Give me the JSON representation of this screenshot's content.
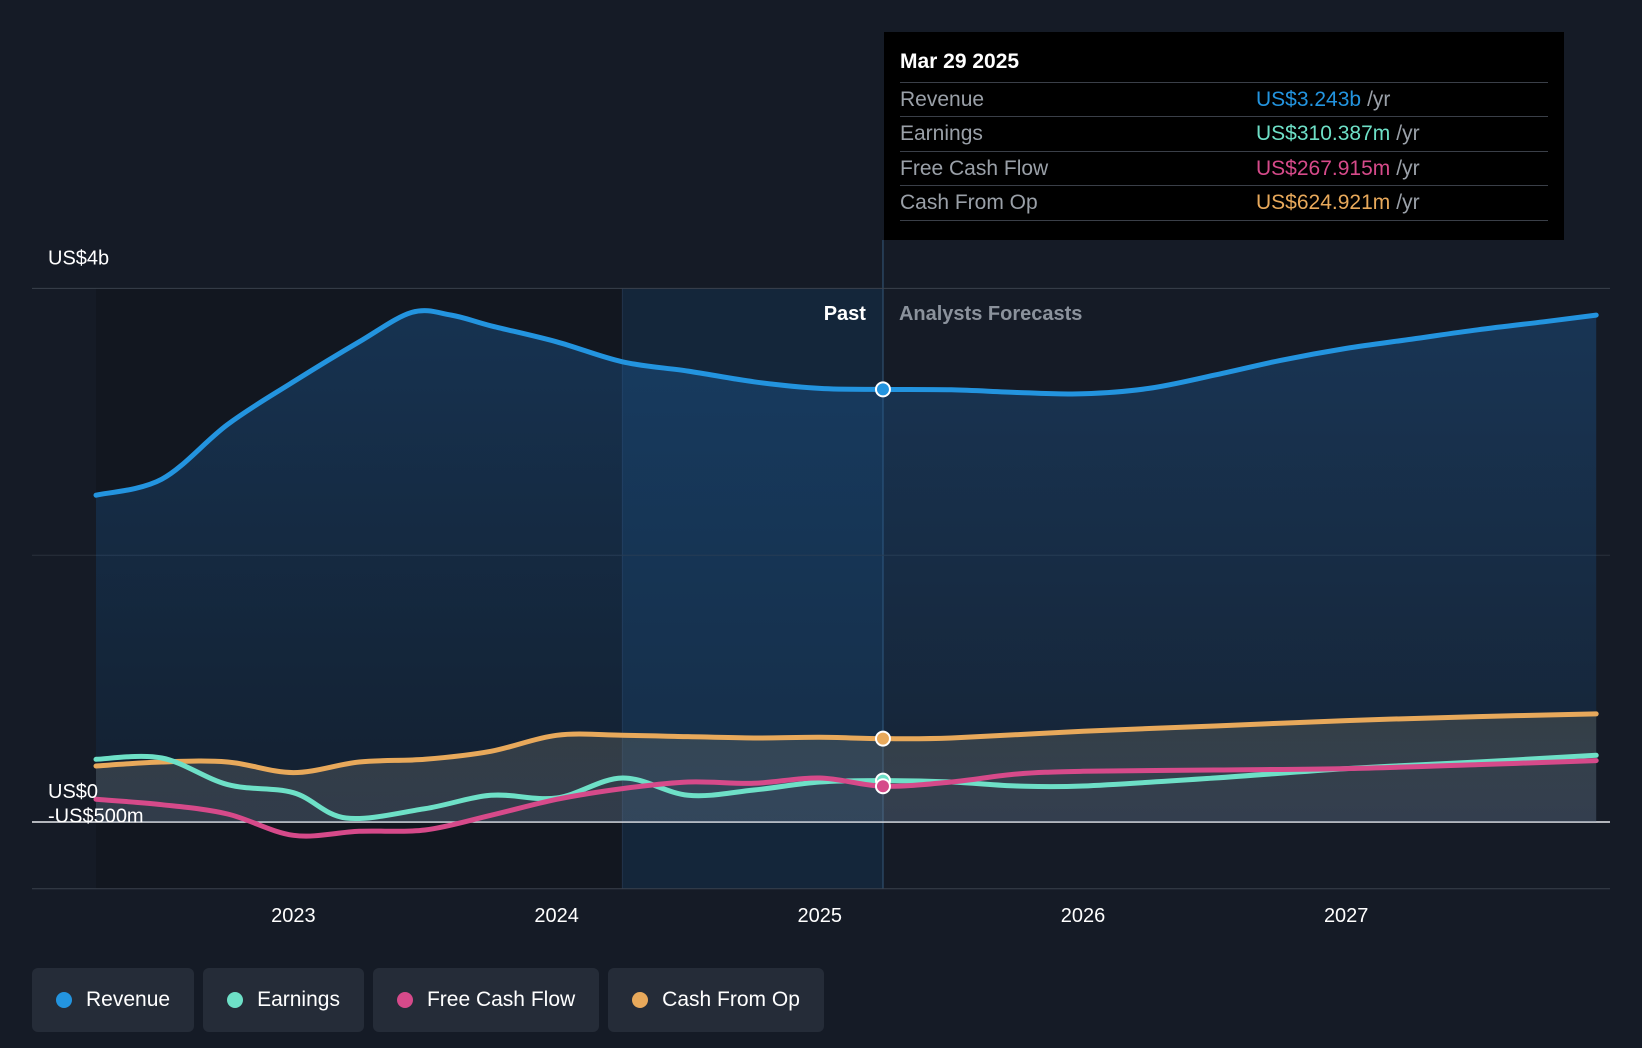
{
  "chart_data": {
    "type": "area",
    "y_ticks": [
      "US$4b",
      "US$0",
      "-US$500m"
    ],
    "x_ticks": [
      "2023",
      "2024",
      "2025",
      "2026",
      "2027"
    ],
    "ylim": [
      -0.5,
      4.0
    ],
    "xlim": [
      2022.25,
      2027.95
    ],
    "past_start": 2024.25,
    "divider": 2025.24,
    "past_label": "Past",
    "forecast_label": "Analysts Forecasts",
    "series": [
      {
        "key": "revenue",
        "name": "Revenue",
        "color": "#2394df",
        "points": [
          [
            2022.25,
            2.45
          ],
          [
            2022.5,
            2.57
          ],
          [
            2022.75,
            2.98
          ],
          [
            2023.0,
            3.3
          ],
          [
            2023.25,
            3.6
          ],
          [
            2023.45,
            3.82
          ],
          [
            2023.6,
            3.8
          ],
          [
            2023.75,
            3.72
          ],
          [
            2024.0,
            3.6
          ],
          [
            2024.25,
            3.45
          ],
          [
            2024.5,
            3.38
          ],
          [
            2024.75,
            3.3
          ],
          [
            2025.0,
            3.25
          ],
          [
            2025.24,
            3.243
          ],
          [
            2025.5,
            3.24
          ],
          [
            2025.75,
            3.22
          ],
          [
            2026.0,
            3.21
          ],
          [
            2026.25,
            3.25
          ],
          [
            2026.5,
            3.35
          ],
          [
            2026.75,
            3.46
          ],
          [
            2027.0,
            3.55
          ],
          [
            2027.25,
            3.62
          ],
          [
            2027.5,
            3.69
          ],
          [
            2027.75,
            3.75
          ],
          [
            2027.95,
            3.8
          ]
        ]
      },
      {
        "key": "earnings",
        "name": "Earnings",
        "color": "#6ee0c7",
        "points": [
          [
            2022.25,
            0.47
          ],
          [
            2022.5,
            0.48
          ],
          [
            2022.75,
            0.28
          ],
          [
            2023.0,
            0.22
          ],
          [
            2023.2,
            0.03
          ],
          [
            2023.5,
            0.1
          ],
          [
            2023.75,
            0.2
          ],
          [
            2024.0,
            0.18
          ],
          [
            2024.25,
            0.33
          ],
          [
            2024.5,
            0.2
          ],
          [
            2024.75,
            0.24
          ],
          [
            2025.0,
            0.3
          ],
          [
            2025.24,
            0.31
          ],
          [
            2025.5,
            0.3
          ],
          [
            2025.75,
            0.27
          ],
          [
            2026.0,
            0.27
          ],
          [
            2026.5,
            0.33
          ],
          [
            2027.0,
            0.4
          ],
          [
            2027.5,
            0.45
          ],
          [
            2027.95,
            0.5
          ]
        ]
      },
      {
        "key": "fcf",
        "name": "Free Cash Flow",
        "color": "#d64a8a",
        "points": [
          [
            2022.25,
            0.17
          ],
          [
            2022.5,
            0.13
          ],
          [
            2022.75,
            0.06
          ],
          [
            2023.0,
            -0.1
          ],
          [
            2023.25,
            -0.07
          ],
          [
            2023.5,
            -0.06
          ],
          [
            2023.75,
            0.05
          ],
          [
            2024.0,
            0.17
          ],
          [
            2024.25,
            0.25
          ],
          [
            2024.5,
            0.3
          ],
          [
            2024.75,
            0.29
          ],
          [
            2025.0,
            0.33
          ],
          [
            2025.24,
            0.268
          ],
          [
            2025.5,
            0.3
          ],
          [
            2025.75,
            0.36
          ],
          [
            2026.0,
            0.38
          ],
          [
            2026.5,
            0.39
          ],
          [
            2027.0,
            0.4
          ],
          [
            2027.5,
            0.43
          ],
          [
            2027.95,
            0.46
          ]
        ]
      },
      {
        "key": "cfo",
        "name": "Cash From Op",
        "color": "#e8a95b",
        "points": [
          [
            2022.25,
            0.42
          ],
          [
            2022.5,
            0.45
          ],
          [
            2022.75,
            0.45
          ],
          [
            2023.0,
            0.37
          ],
          [
            2023.25,
            0.45
          ],
          [
            2023.5,
            0.47
          ],
          [
            2023.75,
            0.53
          ],
          [
            2024.0,
            0.65
          ],
          [
            2024.25,
            0.65
          ],
          [
            2024.5,
            0.64
          ],
          [
            2024.75,
            0.63
          ],
          [
            2025.0,
            0.635
          ],
          [
            2025.24,
            0.625
          ],
          [
            2025.5,
            0.63
          ],
          [
            2026.0,
            0.68
          ],
          [
            2026.5,
            0.72
          ],
          [
            2027.0,
            0.76
          ],
          [
            2027.5,
            0.79
          ],
          [
            2027.95,
            0.81
          ]
        ]
      }
    ]
  },
  "tooltip": {
    "date": "Mar 29 2025",
    "rows": [
      {
        "label": "Revenue",
        "value": "US$3.243b",
        "unit": "/yr",
        "color": "#2394df"
      },
      {
        "label": "Earnings",
        "value": "US$310.387m",
        "unit": "/yr",
        "color": "#6ee0c7"
      },
      {
        "label": "Free Cash Flow",
        "value": "US$267.915m",
        "unit": "/yr",
        "color": "#d64a8a"
      },
      {
        "label": "Cash From Op",
        "value": "US$624.921m",
        "unit": "/yr",
        "color": "#e8a95b"
      }
    ]
  },
  "legend": [
    {
      "label": "Revenue",
      "color": "#2394df"
    },
    {
      "label": "Earnings",
      "color": "#6ee0c7"
    },
    {
      "label": "Free Cash Flow",
      "color": "#d64a8a"
    },
    {
      "label": "Cash From Op",
      "color": "#e8a95b"
    }
  ]
}
